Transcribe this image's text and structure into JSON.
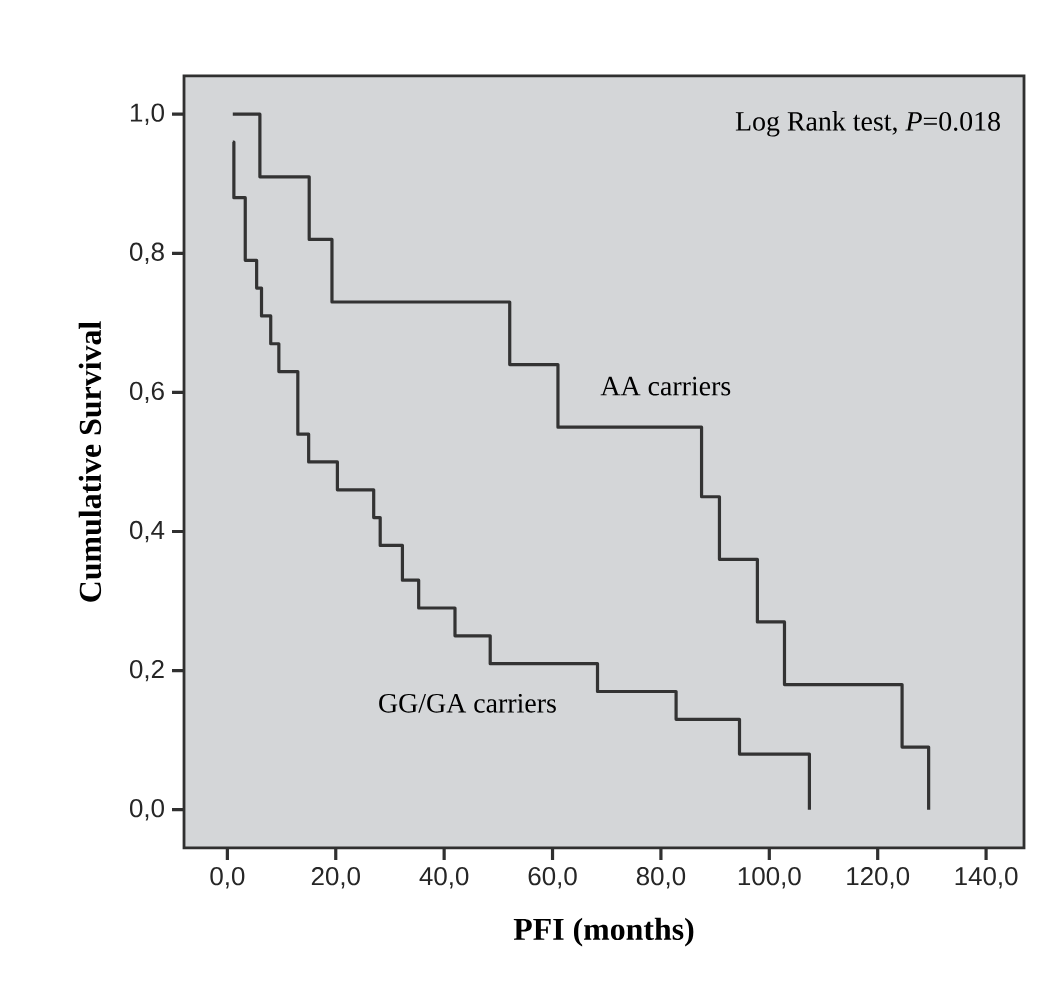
{
  "chart_data": {
    "type": "step",
    "xlabel": "PFI (months)",
    "ylabel": "Cumulative Survival",
    "annotations": [
      "Log Rank test, *P*=0.018"
    ],
    "series": [
      {
        "name": "AA carriers",
        "color": "#333333",
        "x": [
          1.0,
          6.0,
          15.1,
          19.3,
          52.1,
          61.0,
          87.5,
          90.8,
          97.8,
          102.8,
          124.5,
          129.4
        ],
        "values": [
          1.0,
          0.91,
          0.82,
          0.73,
          0.64,
          0.55,
          0.45,
          0.36,
          0.27,
          0.18,
          0.09,
          0.0
        ]
      },
      {
        "name": "GG/GA carriers",
        "color": "#333333",
        "x": [
          1.0,
          1.2,
          3.3,
          5.4,
          6.3,
          8.0,
          9.5,
          13.0,
          15.0,
          20.3,
          27.0,
          28.2,
          32.3,
          35.3,
          42.0,
          48.5,
          68.3,
          82.8,
          94.5,
          107.4
        ],
        "values": [
          0.96,
          0.88,
          0.79,
          0.75,
          0.71,
          0.67,
          0.63,
          0.54,
          0.5,
          0.46,
          0.42,
          0.38,
          0.33,
          0.29,
          0.25,
          0.21,
          0.17,
          0.13,
          0.08,
          0.0
        ]
      }
    ],
    "xlim": [
      -8,
      147
    ],
    "ylim": [
      -0.055,
      1.055
    ],
    "xticks": [
      {
        "value": 0,
        "label": "0,0"
      },
      {
        "value": 20,
        "label": "20,0"
      },
      {
        "value": 40,
        "label": "40,0"
      },
      {
        "value": 60,
        "label": "60,0"
      },
      {
        "value": 80,
        "label": "80,0"
      },
      {
        "value": 100,
        "label": "100,0"
      },
      {
        "value": 120,
        "label": "120,0"
      },
      {
        "value": 140,
        "label": "140,0"
      }
    ],
    "yticks": [
      {
        "value": 0,
        "label": "0,0"
      },
      {
        "value": 0.2,
        "label": "0,2"
      },
      {
        "value": 0.4,
        "label": "0,4"
      },
      {
        "value": 0.6,
        "label": "0,6"
      },
      {
        "value": 0.8,
        "label": "0,8"
      },
      {
        "value": 1.0,
        "label": "1,0"
      }
    ]
  }
}
